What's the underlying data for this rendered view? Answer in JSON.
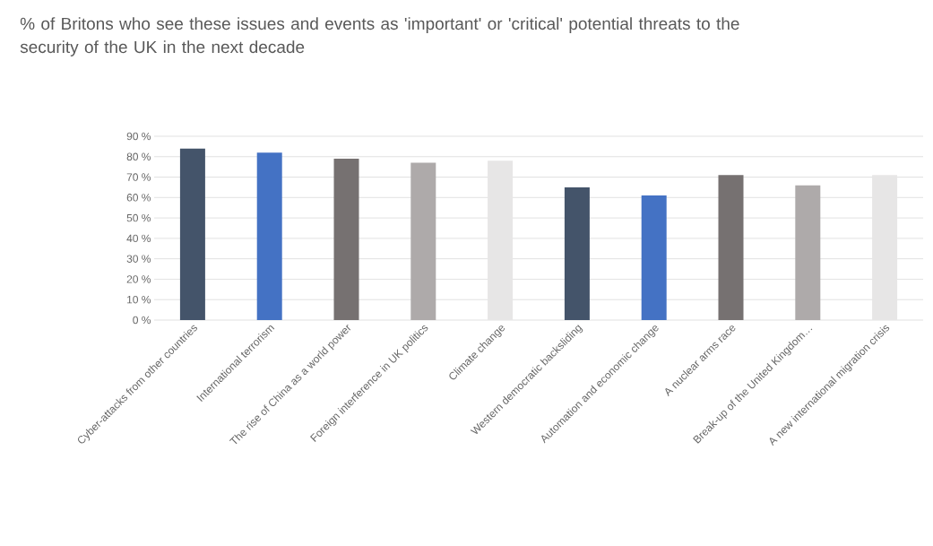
{
  "chart_data": {
    "type": "bar",
    "title": "% of Britons who see these issues and events as 'important' or 'critical' potential threats to the security of the UK in the next decade",
    "categories": [
      "Cyber-attacks from other countries",
      "International terrorism",
      "The rise of China as a world power",
      "Foreign interference in UK politics",
      "Climate change",
      "Western democratic backsliding",
      "Automation and economic change",
      "A nuclear arms race",
      "Break-up of the United Kingdom…",
      "A new international migration crisis"
    ],
    "values": [
      84,
      82,
      79,
      77,
      78,
      65,
      61,
      71,
      66,
      71
    ],
    "colors": [
      "#44546a",
      "#4472c4",
      "#767171",
      "#aeaaaa",
      "#e7e6e6",
      "#44546a",
      "#4472c4",
      "#767171",
      "#aeaaaa",
      "#e7e6e6"
    ],
    "ylim": [
      0,
      90
    ],
    "yticks": [
      {
        "value": 0,
        "label": "0 %"
      },
      {
        "value": 10,
        "label": "10 %"
      },
      {
        "value": 20,
        "label": "20 %"
      },
      {
        "value": 30,
        "label": "30 %"
      },
      {
        "value": 40,
        "label": "40 %"
      },
      {
        "value": 50,
        "label": "50 %"
      },
      {
        "value": 60,
        "label": "60 %"
      },
      {
        "value": 70,
        "label": "70 %"
      },
      {
        "value": 80,
        "label": "80 %"
      },
      {
        "value": 90,
        "label": "90 %"
      }
    ],
    "grid": "y"
  }
}
